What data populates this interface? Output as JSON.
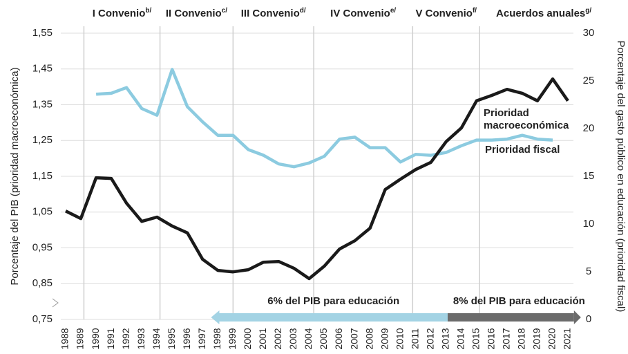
{
  "chart_data": {
    "type": "line",
    "ylabel": "Porcentaje del PIB (prioridad macroeconómica)",
    "y2label": "Porcentaje del gasto público en educación (prioridad fiscal)",
    "x": [
      1988,
      1989,
      1990,
      1991,
      1992,
      1993,
      1994,
      1995,
      1996,
      1997,
      1998,
      1999,
      2000,
      2001,
      2002,
      2003,
      2004,
      2005,
      2006,
      2007,
      2008,
      2009,
      2010,
      2011,
      2012,
      2013,
      2014,
      2015,
      2016,
      2017,
      2018,
      2019,
      2020,
      2021
    ],
    "xlim": [
      1988,
      2021
    ],
    "ylim": [
      0.75,
      1.55
    ],
    "yticks": [
      {
        "value": 0.75,
        "label": "0,75"
      },
      {
        "value": 0.85,
        "label": "0,85"
      },
      {
        "value": 0.95,
        "label": "0,95"
      },
      {
        "value": 1.05,
        "label": "1,05"
      },
      {
        "value": 1.15,
        "label": "1,15"
      },
      {
        "value": 1.25,
        "label": "1,25"
      },
      {
        "value": 1.35,
        "label": "1,35"
      },
      {
        "value": 1.45,
        "label": "1,45"
      },
      {
        "value": 1.55,
        "label": "1,55"
      }
    ],
    "y2lim": [
      0,
      30
    ],
    "y2ticks": [
      0,
      5,
      10,
      15,
      20,
      25,
      30
    ],
    "grid": true,
    "series": [
      {
        "name": "Prioridad macroeconómica",
        "color": "#1a1a1a",
        "axis": "y",
        "values": [
          1.053,
          1.032,
          1.146,
          1.144,
          1.075,
          1.024,
          1.036,
          1.011,
          0.992,
          0.918,
          0.887,
          0.883,
          0.889,
          0.91,
          0.912,
          0.893,
          0.864,
          0.899,
          0.947,
          0.97,
          1.005,
          1.113,
          1.142,
          1.169,
          1.189,
          1.247,
          1.285,
          1.361,
          1.376,
          1.393,
          1.382,
          1.361,
          1.422,
          1.361
        ]
      },
      {
        "name": "Prioridad fiscal",
        "color": "#8ccbe0",
        "axis": "y2",
        "values": [
          null,
          null,
          23.6,
          23.7,
          24.3,
          22.1,
          21.4,
          26.2,
          22.3,
          20.7,
          19.3,
          19.3,
          17.8,
          17.2,
          16.3,
          16.0,
          16.4,
          17.1,
          18.9,
          19.1,
          18.0,
          18.0,
          16.5,
          17.3,
          17.2,
          17.5,
          18.2,
          18.8,
          18.8,
          18.9,
          19.3,
          18.9,
          18.8,
          null
        ]
      }
    ],
    "periods": [
      {
        "label": "I Convenio",
        "note": "b/",
        "start": 1989.2
      },
      {
        "label": "II Convenio",
        "note": "c/",
        "start": 1994.2
      },
      {
        "label": "III Convenio",
        "note": "d/",
        "start": 1999
      },
      {
        "label": "IV Convenio",
        "note": "e/",
        "start": 2004.3
      },
      {
        "label": "V Convenio",
        "note": "f/",
        "start": 2010.8
      },
      {
        "label": "Acuerdos anuales",
        "note": "g/",
        "start": 2015.2
      }
    ],
    "arrows": [
      {
        "label": "6% del PIB para educación",
        "start": 1998.1,
        "end": 2013.1,
        "color": "#a3d3e4"
      },
      {
        "label": "8% del PIB para educación",
        "start": 2013.1,
        "end": 2021.4,
        "color": "#6b6b6b"
      }
    ]
  }
}
